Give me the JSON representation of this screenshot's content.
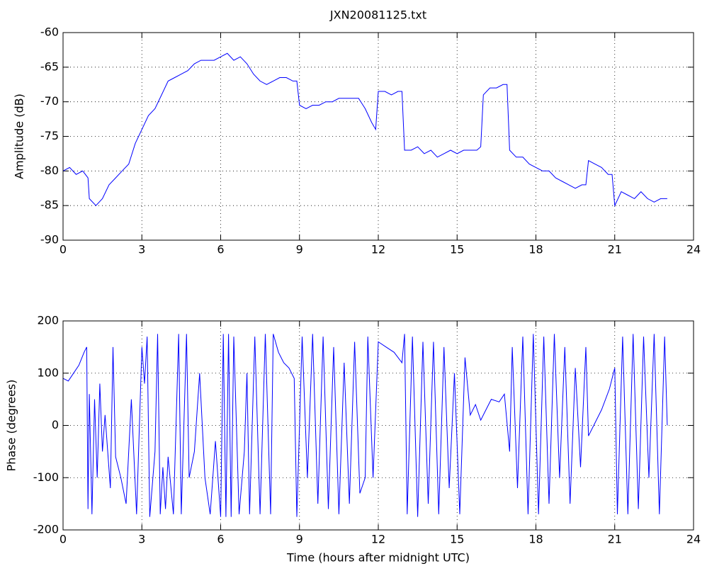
{
  "chart_data": [
    {
      "type": "line",
      "title": "JXN20081125.txt",
      "ylabel": "Amplitude (dB)",
      "xlim": [
        0,
        24
      ],
      "xticks": [
        0,
        3,
        6,
        9,
        12,
        15,
        18,
        21,
        24
      ],
      "ylim": [
        -90,
        -60
      ],
      "yticks": [
        -90,
        -85,
        -80,
        -75,
        -70,
        -65,
        -60
      ],
      "grid": true,
      "x": [
        0,
        0.25,
        0.5,
        0.75,
        0.95,
        1.0,
        1.25,
        1.5,
        1.75,
        2.0,
        2.25,
        2.5,
        2.75,
        3.0,
        3.25,
        3.5,
        3.75,
        4.0,
        4.25,
        4.5,
        4.75,
        5.0,
        5.25,
        5.5,
        5.75,
        6.0,
        6.25,
        6.5,
        6.75,
        7.0,
        7.25,
        7.5,
        7.75,
        8.0,
        8.25,
        8.5,
        8.75,
        8.9,
        9.0,
        9.25,
        9.5,
        9.75,
        10.0,
        10.25,
        10.5,
        10.75,
        11.0,
        11.25,
        11.5,
        11.75,
        11.9,
        12.0,
        12.25,
        12.5,
        12.75,
        12.9,
        13.0,
        13.25,
        13.5,
        13.75,
        14.0,
        14.25,
        14.5,
        14.75,
        15.0,
        15.25,
        15.5,
        15.75,
        15.9,
        16.0,
        16.25,
        16.5,
        16.75,
        16.9,
        17.0,
        17.25,
        17.5,
        17.75,
        18.0,
        18.25,
        18.5,
        18.75,
        19.0,
        19.25,
        19.5,
        19.75,
        19.9,
        20.0,
        20.25,
        20.5,
        20.75,
        20.9,
        21.0,
        21.25,
        21.5,
        21.75,
        22.0,
        22.25,
        22.5,
        22.75,
        23.0
      ],
      "series": [
        {
          "color": "#0000ff",
          "values": [
            -80,
            -79.5,
            -80.5,
            -80,
            -81,
            -84,
            -85,
            -84,
            -82,
            -81,
            -80,
            -79,
            -76,
            -74,
            -72,
            -71,
            -69,
            -67,
            -66.5,
            -66,
            -65.5,
            -64.5,
            -64,
            -64,
            -64,
            -63.5,
            -63,
            -64,
            -63.5,
            -64.5,
            -66,
            -67,
            -67.5,
            -67,
            -66.5,
            -66.5,
            -67,
            -67,
            -70.5,
            -71,
            -70.5,
            -70.5,
            -70,
            -70,
            -69.5,
            -69.5,
            -69.5,
            -69.5,
            -71,
            -73,
            -74,
            -68.5,
            -68.5,
            -69,
            -68.5,
            -68.5,
            -77,
            -77,
            -76.5,
            -77.5,
            -77,
            -78,
            -77.5,
            -77,
            -77.5,
            -77,
            -77,
            -77,
            -76.5,
            -69,
            -68,
            -68,
            -67.5,
            -67.5,
            -77,
            -78,
            -78,
            -79,
            -79.5,
            -80,
            -80,
            -81,
            -81.5,
            -82,
            -82.5,
            -82,
            -82,
            -78.5,
            -79,
            -79.5,
            -80.5,
            -80.5,
            -85,
            -83,
            -83.5,
            -84,
            -83,
            -84,
            -84.5,
            -84,
            -84
          ]
        }
      ]
    },
    {
      "type": "line",
      "ylabel": "Phase (degrees)",
      "xlabel": "Time (hours after midnight UTC)",
      "xlim": [
        0,
        24
      ],
      "xticks": [
        0,
        3,
        6,
        9,
        12,
        15,
        18,
        21,
        24
      ],
      "ylim": [
        -200,
        200
      ],
      "yticks": [
        -200,
        -100,
        0,
        100,
        200
      ],
      "grid": true,
      "x": [
        0,
        0.2,
        0.4,
        0.6,
        0.8,
        0.9,
        0.95,
        1.0,
        1.1,
        1.2,
        1.3,
        1.4,
        1.5,
        1.6,
        1.8,
        1.9,
        2.0,
        2.2,
        2.4,
        2.6,
        2.8,
        3.0,
        3.1,
        3.2,
        3.3,
        3.5,
        3.6,
        3.7,
        3.8,
        3.9,
        4.0,
        4.2,
        4.4,
        4.5,
        4.7,
        4.8,
        5.0,
        5.2,
        5.4,
        5.6,
        5.8,
        6.0,
        6.1,
        6.2,
        6.3,
        6.4,
        6.5,
        6.7,
        6.9,
        7.0,
        7.1,
        7.3,
        7.5,
        7.7,
        7.9,
        8.0,
        8.2,
        8.4,
        8.6,
        8.8,
        8.9,
        9.1,
        9.3,
        9.5,
        9.7,
        9.9,
        10.1,
        10.3,
        10.5,
        10.7,
        10.9,
        11.1,
        11.3,
        11.5,
        11.6,
        11.8,
        12.0,
        12.3,
        12.6,
        12.9,
        13.0,
        13.1,
        13.3,
        13.5,
        13.7,
        13.9,
        14.1,
        14.3,
        14.5,
        14.7,
        14.9,
        15.1,
        15.3,
        15.5,
        15.7,
        15.9,
        16.1,
        16.3,
        16.6,
        16.8,
        17.0,
        17.1,
        17.3,
        17.5,
        17.7,
        17.9,
        18.1,
        18.3,
        18.5,
        18.7,
        18.9,
        19.1,
        19.3,
        19.5,
        19.7,
        19.9,
        20.0,
        20.2,
        20.5,
        20.8,
        21.0,
        21.1,
        21.3,
        21.5,
        21.7,
        21.9,
        22.1,
        22.3,
        22.5,
        22.7,
        22.9,
        23.0
      ],
      "series": [
        {
          "color": "#0000ff",
          "values": [
            90,
            85,
            100,
            115,
            140,
            150,
            -160,
            60,
            -170,
            50,
            -100,
            80,
            -50,
            20,
            -120,
            150,
            -60,
            -100,
            -150,
            50,
            -170,
            150,
            80,
            170,
            -175,
            -50,
            175,
            -170,
            -80,
            -160,
            -60,
            -170,
            175,
            -170,
            175,
            -100,
            -50,
            100,
            -100,
            -170,
            -30,
            -175,
            175,
            -175,
            175,
            -175,
            170,
            -170,
            -50,
            100,
            -170,
            170,
            -170,
            175,
            -170,
            175,
            140,
            120,
            110,
            90,
            -175,
            170,
            -100,
            175,
            -150,
            170,
            -160,
            150,
            -170,
            120,
            -150,
            160,
            -130,
            -100,
            170,
            -100,
            160,
            150,
            140,
            120,
            175,
            -170,
            170,
            -175,
            160,
            -150,
            160,
            -170,
            150,
            -120,
            100,
            -170,
            130,
            20,
            40,
            10,
            30,
            50,
            45,
            60,
            -50,
            150,
            -120,
            170,
            -170,
            175,
            -170,
            170,
            -150,
            175,
            -100,
            150,
            -150,
            110,
            -80,
            150,
            -20,
            0,
            30,
            70,
            110,
            -170,
            170,
            -170,
            175,
            -160,
            170,
            -100,
            175,
            -170,
            170,
            0
          ]
        }
      ]
    }
  ]
}
